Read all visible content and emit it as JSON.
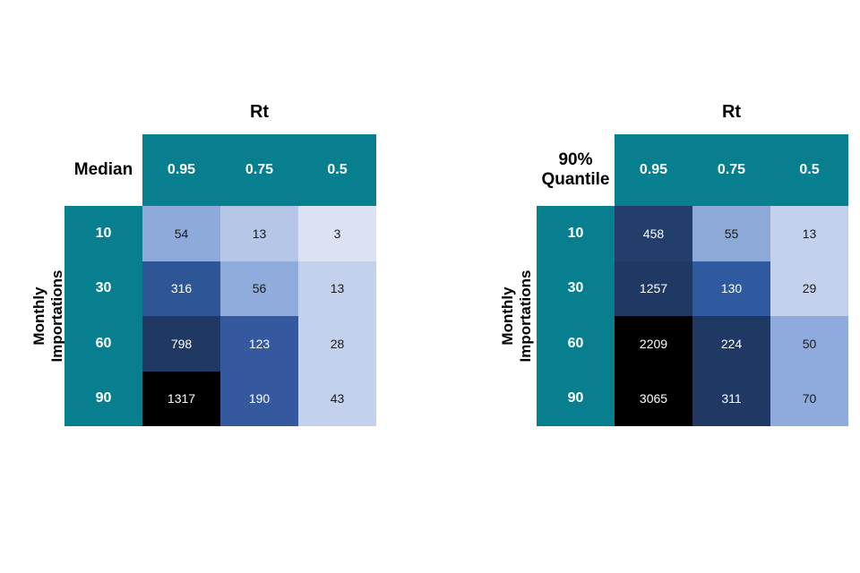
{
  "colors": {
    "teal": "#077F8E",
    "header_text": "#ffffff",
    "black_cell": "#000000"
  },
  "tables": [
    {
      "col_axis_label": "Rt",
      "corner": {
        "line1": "Median",
        "line2": ""
      },
      "row_axis_label": {
        "line1": "Monthly",
        "line2": "Importations"
      },
      "col_headers": [
        "0.95",
        "0.75",
        "0.5"
      ],
      "row_headers": [
        "10",
        "30",
        "60",
        "90"
      ],
      "cells": [
        [
          {
            "v": "54",
            "bg": "#8EAADA",
            "fg": "#1a1a1a"
          },
          {
            "v": "13",
            "bg": "#B5C6E6",
            "fg": "#1a1a1a"
          },
          {
            "v": "3",
            "bg": "#DBE3F3",
            "fg": "#1a1a1a"
          }
        ],
        [
          {
            "v": "316",
            "bg": "#2E5596",
            "fg": "#ffffff"
          },
          {
            "v": "56",
            "bg": "#90ACDC",
            "fg": "#1a1a1a"
          },
          {
            "v": "13",
            "bg": "#C4D1EC",
            "fg": "#1a1a1a"
          }
        ],
        [
          {
            "v": "798",
            "bg": "#1F3864",
            "fg": "#ffffff"
          },
          {
            "v": "123",
            "bg": "#34599E",
            "fg": "#ffffff"
          },
          {
            "v": "28",
            "bg": "#C4D1EC",
            "fg": "#1a1a1a"
          }
        ],
        [
          {
            "v": "1317",
            "bg": "#000000",
            "fg": "#ffffff"
          },
          {
            "v": "190",
            "bg": "#34599E",
            "fg": "#ffffff"
          },
          {
            "v": "43",
            "bg": "#C4D1EC",
            "fg": "#1a1a1a"
          }
        ]
      ]
    },
    {
      "col_axis_label": "Rt",
      "corner": {
        "line1": "90%",
        "line2": "Quantile"
      },
      "row_axis_label": {
        "line1": "Monthly",
        "line2": "Importations"
      },
      "col_headers": [
        "0.95",
        "0.75",
        "0.5"
      ],
      "row_headers": [
        "10",
        "30",
        "60",
        "90"
      ],
      "cells": [
        [
          {
            "v": "458",
            "bg": "#243E6B",
            "fg": "#ffffff"
          },
          {
            "v": "55",
            "bg": "#8DA9D8",
            "fg": "#1a1a1a"
          },
          {
            "v": "13",
            "bg": "#C4D1EC",
            "fg": "#1a1a1a"
          }
        ],
        [
          {
            "v": "1257",
            "bg": "#1F3864",
            "fg": "#ffffff"
          },
          {
            "v": "130",
            "bg": "#2F5AA0",
            "fg": "#ffffff"
          },
          {
            "v": "29",
            "bg": "#C4D1EC",
            "fg": "#1a1a1a"
          }
        ],
        [
          {
            "v": "2209",
            "bg": "#000000",
            "fg": "#ffffff"
          },
          {
            "v": "224",
            "bg": "#1F3864",
            "fg": "#ffffff"
          },
          {
            "v": "50",
            "bg": "#8FABDE",
            "fg": "#1a1a1a"
          }
        ],
        [
          {
            "v": "3065",
            "bg": "#000000",
            "fg": "#ffffff"
          },
          {
            "v": "311",
            "bg": "#1F3864",
            "fg": "#ffffff"
          },
          {
            "v": "70",
            "bg": "#8FABDE",
            "fg": "#1a1a1a"
          }
        ]
      ]
    }
  ],
  "chart_data": [
    {
      "type": "heatmap",
      "title": "Rt",
      "statistic": "Median",
      "xlabel": "Rt",
      "ylabel": "Monthly Importations",
      "columns": [
        0.95,
        0.75,
        0.5
      ],
      "rows": [
        10,
        30,
        60,
        90
      ],
      "values": [
        [
          54,
          13,
          3
        ],
        [
          316,
          56,
          13
        ],
        [
          798,
          123,
          28
        ],
        [
          1317,
          190,
          43
        ]
      ],
      "legend": "off",
      "color_scale": "light blue (low) to navy/black (high)"
    },
    {
      "type": "heatmap",
      "title": "Rt",
      "statistic": "90% Quantile",
      "xlabel": "Rt",
      "ylabel": "Monthly Importations",
      "columns": [
        0.95,
        0.75,
        0.5
      ],
      "rows": [
        10,
        30,
        60,
        90
      ],
      "values": [
        [
          458,
          55,
          13
        ],
        [
          1257,
          130,
          29
        ],
        [
          2209,
          224,
          50
        ],
        [
          3065,
          311,
          70
        ]
      ],
      "legend": "off",
      "color_scale": "light blue (low) to navy/black (high)"
    }
  ]
}
